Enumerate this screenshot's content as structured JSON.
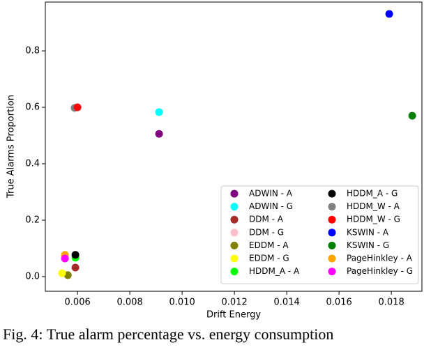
{
  "chart_data": {
    "type": "scatter",
    "x_label": "Drift Energy",
    "y_label": "True Alarms Proportion",
    "caption": "Fig. 4: True alarm percentage vs. energy consumption",
    "xlim": [
      0.00477,
      0.01917
    ],
    "ylim": [
      -0.052,
      0.973
    ],
    "xticks": [
      0.006,
      0.008,
      {
        "value": 0.01,
        "label": "0.010"
      },
      0.012,
      0.014,
      0.016,
      0.018
    ],
    "yticks": [
      {
        "value": 0,
        "label": "0.0"
      },
      0.2,
      0.4,
      0.6,
      0.8
    ],
    "legend": "lower right",
    "series": [
      {
        "name": "ADWIN - A",
        "color": "#800080",
        "x": [
          0.00912
        ],
        "values": [
          0.506
        ]
      },
      {
        "name": "ADWIN - G",
        "color": "#00ffff",
        "x": [
          0.00912
        ],
        "values": [
          0.583
        ]
      },
      {
        "name": "DDM - A",
        "color": "#a52a2a",
        "x": [
          0.00592
        ],
        "values": [
          0.032
        ]
      },
      {
        "name": "DDM - G",
        "color": "#ffc0cb",
        "x": [
          0.00552
        ],
        "values": [
          0.072
        ]
      },
      {
        "name": "EDDM - A",
        "color": "#808000",
        "x": [
          0.00563
        ],
        "values": [
          0.005
        ]
      },
      {
        "name": "EDDM - G",
        "color": "#ffff00",
        "x": [
          0.00541
        ],
        "values": [
          0.012
        ]
      },
      {
        "name": "HDDM_A - A",
        "color": "#00ff00",
        "x": [
          0.00592
        ],
        "values": [
          0.067
        ]
      },
      {
        "name": "HDDM_A - G",
        "color": "#000000",
        "x": [
          0.00592
        ],
        "values": [
          0.077
        ]
      },
      {
        "name": "HDDM_W - A",
        "color": "#808080",
        "x": [
          0.00589
        ],
        "values": [
          0.598
        ]
      },
      {
        "name": "HDDM_W - G",
        "color": "#ff0000",
        "x": [
          0.006
        ],
        "values": [
          0.6
        ]
      },
      {
        "name": "KSWIN - A",
        "color": "#0000ff",
        "x": [
          0.01792
        ],
        "values": [
          0.931
        ]
      },
      {
        "name": "KSWIN - G",
        "color": "#008000",
        "x": [
          0.0188
        ],
        "values": [
          0.57
        ]
      },
      {
        "name": "PageHinkley - A",
        "color": "#ffa500",
        "x": [
          0.00552
        ],
        "values": [
          0.077
        ]
      },
      {
        "name": "PageHinkley - G",
        "color": "#ff00ff",
        "x": [
          0.00552
        ],
        "values": [
          0.064
        ]
      }
    ]
  }
}
